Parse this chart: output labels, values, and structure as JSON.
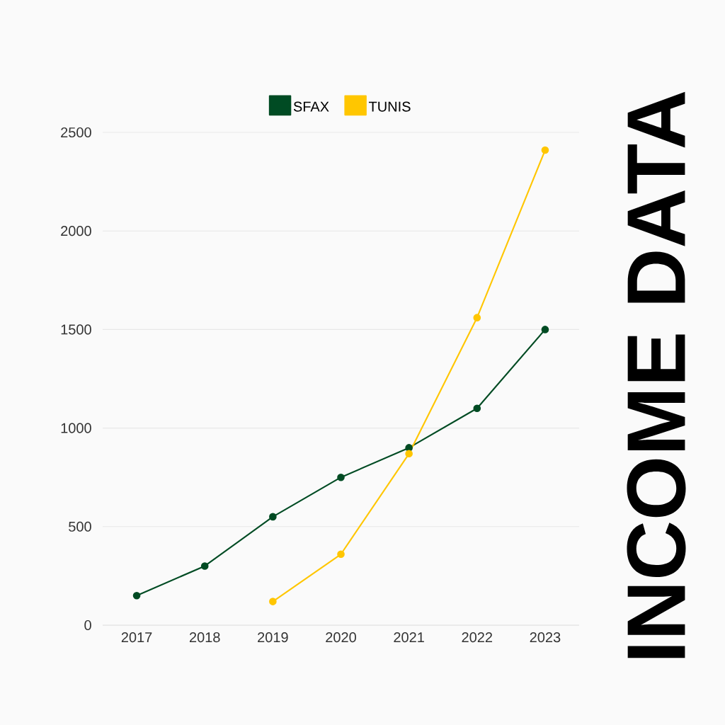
{
  "chart_data": {
    "type": "line",
    "title": "INCOME DATA",
    "categories": [
      "2017",
      "2018",
      "2019",
      "2020",
      "2021",
      "2022",
      "2023"
    ],
    "series": [
      {
        "name": "SFAX",
        "color": "#004b23",
        "values": [
          150,
          300,
          550,
          750,
          900,
          1100,
          1500
        ]
      },
      {
        "name": "TUNIS",
        "color": "#ffc600",
        "values": [
          null,
          null,
          120,
          360,
          870,
          1560,
          2410
        ]
      }
    ],
    "ylim": [
      0,
      2500
    ],
    "yticks": [
      0,
      500,
      1000,
      1500,
      2000,
      2500
    ],
    "grid": "y",
    "legend": "top",
    "marker": "circle",
    "line_style": "solid"
  }
}
